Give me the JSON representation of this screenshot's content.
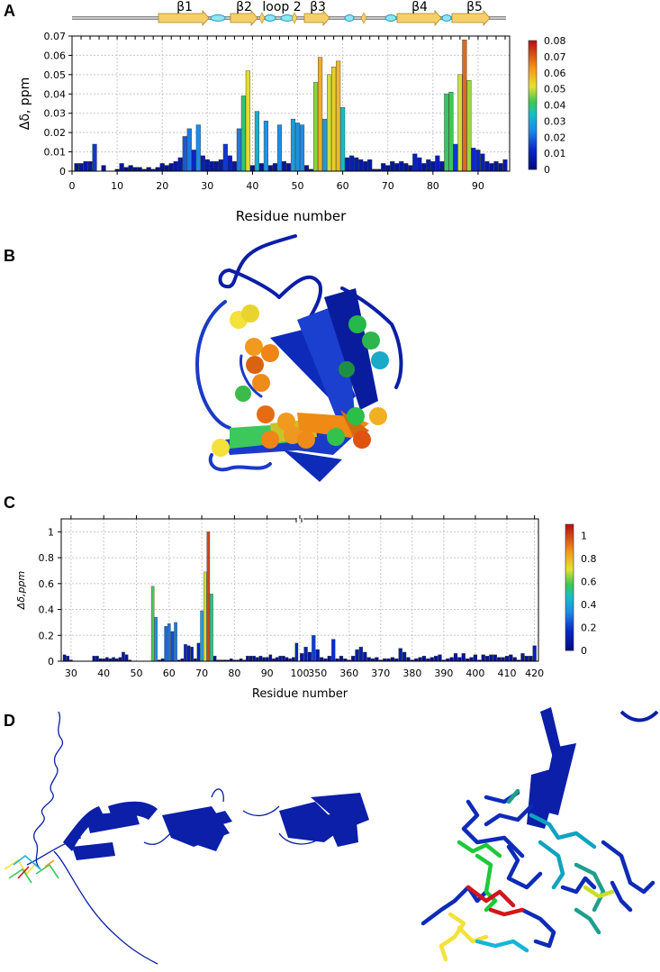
{
  "panels": {
    "a": "A",
    "b": "B",
    "c": "C",
    "d": "D"
  },
  "chart_data": [
    {
      "type": "bar",
      "title": "",
      "xlabel": "Residue number",
      "ylabel": "Δδ, ppm",
      "xlim": [
        0,
        97
      ],
      "ylim": [
        0,
        0.07
      ],
      "xticks": [
        "0",
        "10",
        "20",
        "30",
        "40",
        "50",
        "60",
        "70",
        "80",
        "90"
      ],
      "yticks": [
        "0",
        "0.01",
        "0.02",
        "0.03",
        "0.04",
        "0.05",
        "0.06",
        "0.07"
      ],
      "grid": true,
      "colorbar": {
        "range": [
          0,
          0.08
        ],
        "ticks": [
          "0",
          "0.01",
          "0.02",
          "0.03",
          "0.04",
          "0.05",
          "0.06",
          "0.07",
          "0.08"
        ]
      },
      "secondary_structure": [
        "β1",
        "β2",
        "loop 2",
        "β3",
        "β4",
        "β5"
      ],
      "x": [
        1,
        2,
        3,
        4,
        5,
        7,
        10,
        11,
        12,
        13,
        14,
        15,
        16,
        17,
        18,
        19,
        20,
        21,
        22,
        23,
        24,
        25,
        26,
        27,
        28,
        29,
        30,
        31,
        32,
        33,
        34,
        35,
        36,
        37,
        38,
        39,
        40,
        41,
        42,
        43,
        44,
        45,
        46,
        47,
        48,
        49,
        50,
        51,
        52,
        53,
        54,
        55,
        56,
        57,
        58,
        59,
        60,
        61,
        62,
        63,
        64,
        65,
        66,
        67,
        68,
        69,
        70,
        71,
        72,
        73,
        74,
        75,
        76,
        77,
        78,
        79,
        80,
        81,
        82,
        83,
        84,
        85,
        86,
        87,
        88,
        89,
        90,
        91,
        92,
        93,
        94,
        95,
        96
      ],
      "values": [
        0.004,
        0.004,
        0.005,
        0.005,
        0.014,
        0.003,
        0.001,
        0.004,
        0.002,
        0.003,
        0.002,
        0.002,
        0.001,
        0.002,
        0.001,
        0.002,
        0.004,
        0.003,
        0.004,
        0.005,
        0.007,
        0.018,
        0.022,
        0.011,
        0.024,
        0.008,
        0.006,
        0.005,
        0.005,
        0.006,
        0.014,
        0.008,
        0.005,
        0.022,
        0.039,
        0.052,
        0.003,
        0.031,
        0.004,
        0.026,
        0.003,
        0.004,
        0.024,
        0.005,
        0.004,
        0.027,
        0.025,
        0.024,
        0.003,
        0.001,
        0.046,
        0.059,
        0.027,
        0.05,
        0.054,
        0.057,
        0.033,
        0.007,
        0.008,
        0.007,
        0.006,
        0.005,
        0.006,
        0.001,
        0.001,
        0.004,
        0.003,
        0.005,
        0.004,
        0.005,
        0.004,
        0.003,
        0.009,
        0.007,
        0.004,
        0.006,
        0.005,
        0.008,
        0.005,
        0.04,
        0.041,
        0.014,
        0.05,
        0.068,
        0.047,
        0.012,
        0.011,
        0.009,
        0.005,
        0.004,
        0.005,
        0.004,
        0.006
      ]
    },
    {
      "type": "bar",
      "title": "",
      "xlabel": "Residue number",
      "ylabel": "Δδ,ppm",
      "ylim": [
        0,
        1.1
      ],
      "xticks": [
        "30",
        "40",
        "50",
        "60",
        "70",
        "80",
        "90",
        "100",
        "350",
        "360",
        "370",
        "380",
        "390",
        "400",
        "410",
        "420"
      ],
      "yticks": [
        "0",
        "0.2",
        "0.4",
        "0.6",
        "0.8",
        "1"
      ],
      "grid": true,
      "colorbar": {
        "range": [
          0,
          1.1
        ],
        "ticks": [
          "0",
          "0.2",
          "0.4",
          "0.6",
          "0.8",
          "1"
        ]
      },
      "x_segment1": [
        28,
        29,
        30,
        37,
        38,
        39,
        40,
        41,
        42,
        43,
        44,
        45,
        46,
        47,
        48,
        55,
        56,
        57,
        58,
        59,
        60,
        61,
        62,
        63,
        64,
        65,
        66,
        67,
        68,
        69,
        70,
        71,
        72,
        73,
        74,
        75,
        76,
        77,
        78,
        79,
        80,
        81,
        82,
        83,
        84,
        85,
        86,
        87,
        88,
        89,
        90,
        91,
        92,
        93,
        94,
        95,
        96,
        97,
        98,
        99
      ],
      "values_segment1": [
        0.05,
        0.04,
        0.01,
        0.04,
        0.04,
        0.02,
        0.02,
        0.03,
        0.02,
        0.03,
        0.02,
        0.03,
        0.07,
        0.05,
        0.01,
        0.58,
        0.34,
        0.01,
        0.02,
        0.27,
        0.29,
        0.23,
        0.3,
        0.01,
        0.02,
        0.13,
        0.12,
        0.11,
        0.02,
        0.14,
        0.39,
        0.69,
        1.0,
        0.52,
        0.04,
        0.01,
        0.01,
        0.01,
        0.01,
        0.02,
        0.01,
        0.01,
        0.02,
        0.01,
        0.04,
        0.04,
        0.04,
        0.03,
        0.04,
        0.03,
        0.03,
        0.05,
        0.02,
        0.03,
        0.04,
        0.04,
        0.03,
        0.02,
        0.03,
        0.14
      ],
      "x_segment2": [
        101,
        102,
        103,
        104,
        105,
        106,
        107,
        108,
        109,
        110,
        111,
        112,
        113,
        114,
        115,
        116,
        117,
        118,
        119,
        120,
        121,
        122,
        123,
        124,
        125,
        126,
        127,
        128,
        129,
        130,
        131,
        132,
        133,
        134,
        135,
        136,
        137,
        138,
        139,
        140,
        141,
        142,
        143,
        144,
        145,
        146,
        147,
        148,
        149,
        150,
        151,
        152,
        153,
        154,
        155,
        156,
        157,
        158,
        159,
        160
      ],
      "values_segment2": [
        0.06,
        0.11,
        0.07,
        0.2,
        0.09,
        0.03,
        0.02,
        0.04,
        0.17,
        0.02,
        0.04,
        0.02,
        0.01,
        0.04,
        0.09,
        0.11,
        0.07,
        0.03,
        0.02,
        0.03,
        0.01,
        0.02,
        0.02,
        0.03,
        0.02,
        0.1,
        0.07,
        0.03,
        0.01,
        0.02,
        0.03,
        0.04,
        0.02,
        0.03,
        0.04,
        0.05,
        0.01,
        0.02,
        0.03,
        0.06,
        0.03,
        0.06,
        0.02,
        0.03,
        0.05,
        0.01,
        0.05,
        0.04,
        0.05,
        0.05,
        0.03,
        0.03,
        0.04,
        0.05,
        0.03,
        0.01,
        0.06,
        0.04,
        0.04,
        0.12
      ]
    }
  ],
  "colors": {
    "navy": "#00108f",
    "blue": "#1f4fd8",
    "cyan": "#15b5d8",
    "green": "#3cc85a",
    "yellow": "#f4e63a",
    "orange": "#f49a1c",
    "red": "#d4141c",
    "gold_arrow": "#f7cf6a"
  }
}
